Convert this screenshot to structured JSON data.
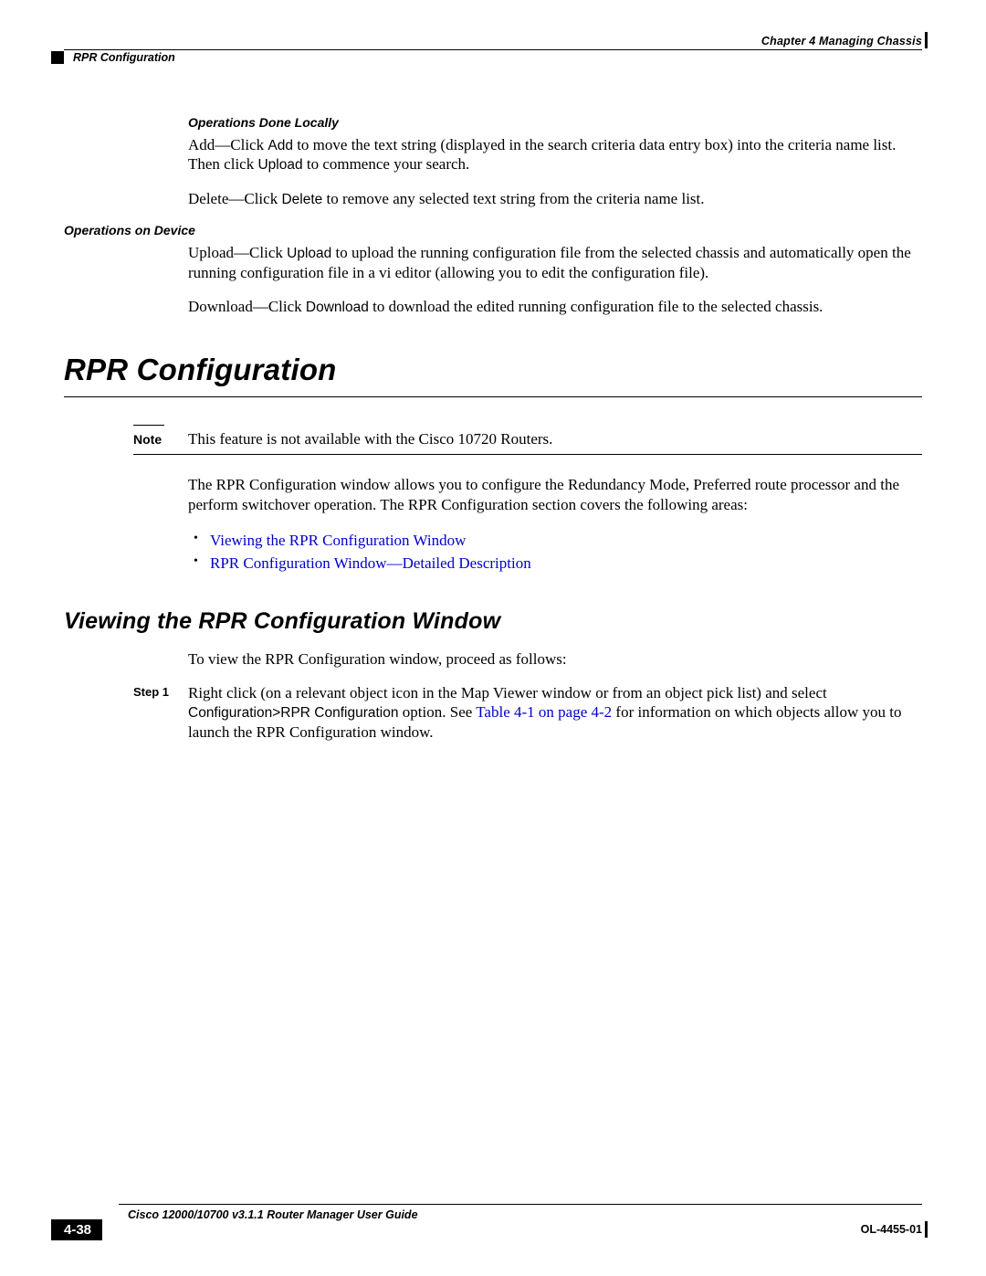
{
  "header": {
    "chapter": "Chapter 4      Managing Chassis",
    "section": "RPR Configuration"
  },
  "ops_local": {
    "heading": "Operations Done Locally",
    "add_pre": "Add—Click ",
    "add_bold": "Add",
    "add_mid": " to move the text string (displayed in the search criteria data entry box) into the criteria name list. Then click ",
    "add_bold2": "Upload",
    "add_post": " to commence your search.",
    "del_pre": "Delete—Click ",
    "del_bold": "Delete",
    "del_post": " to remove any selected text string from the criteria name list."
  },
  "ops_device": {
    "heading": "Operations on Device",
    "up_pre": "Upload—Click ",
    "up_bold": "Upload",
    "up_post": " to upload the running configuration file from the selected chassis and automatically open the running configuration file in a vi editor (allowing you to edit the configuration file).",
    "dn_pre": "Download—Click ",
    "dn_bold": "Download",
    "dn_post": " to download the edited running configuration file to the selected chassis."
  },
  "rpr": {
    "title": "RPR Configuration",
    "note_label": "Note",
    "note_text": "This feature is not available with the Cisco 10720 Routers.",
    "intro": "The RPR Configuration window allows you to configure the Redundancy Mode, Preferred route processor and the perform switchover operation. The RPR Configuration section covers the following areas:",
    "link1": "Viewing the RPR Configuration Window",
    "link2": "RPR Configuration Window—Detailed Description"
  },
  "viewing": {
    "title": "Viewing the RPR Configuration Window",
    "intro": "To view the RPR Configuration window, proceed as follows:",
    "step_label": "Step 1",
    "step_pre": "Right click (on a relevant object icon in the Map Viewer window or from an object pick list) and select ",
    "step_bold": "Configuration>RPR Configuration ",
    "step_mid": "option. See ",
    "step_link": "Table 4-1 on page 4-2",
    "step_post": " for information on which objects allow you to launch the RPR Configuration window."
  },
  "footer": {
    "title": "Cisco 12000/10700 v3.1.1 Router Manager User Guide",
    "page": "4-38",
    "doc": "OL-4455-01"
  }
}
